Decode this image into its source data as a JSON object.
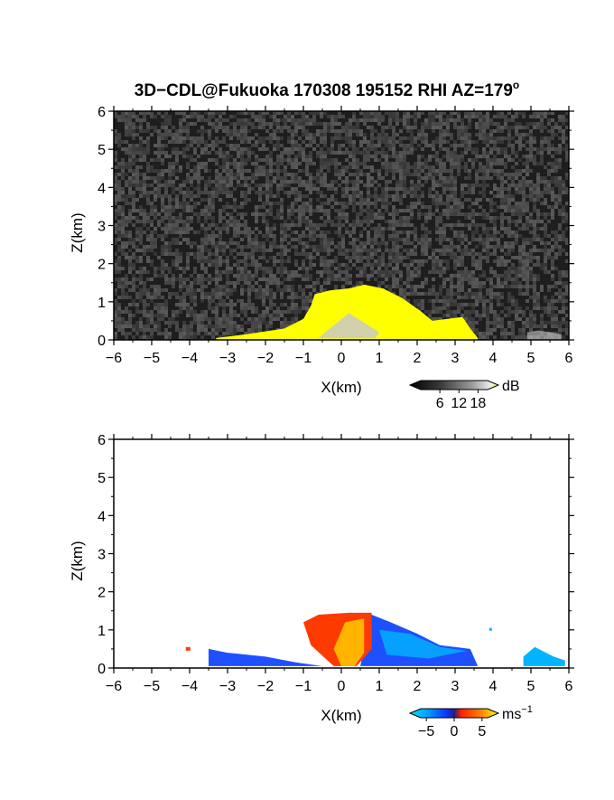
{
  "title": "3D−CDL@Fukuoka 170308 195152 RHI AZ=179",
  "title_sup": "o",
  "colors": {
    "noise_low": "#1e1e1e",
    "noise_high": "#5a5a5a",
    "echo": "#ffff00",
    "echo_core": "#c8c8c8",
    "vel_pos": "#ff3a00",
    "vel_neg": "#1e50ff",
    "vel_mid": "#00b4ff",
    "vel_hot": "#ffb400"
  },
  "chart_data": [
    {
      "type": "heatmap",
      "name": "reflectivity",
      "xlabel": "X(km)",
      "ylabel": "Z(km)",
      "xlim": [
        -6,
        6
      ],
      "ylim": [
        0,
        6
      ],
      "xticks": [
        "−6",
        "−5",
        "−4",
        "−3",
        "−2",
        "−1",
        "0",
        "1",
        "2",
        "3",
        "4",
        "5",
        "6"
      ],
      "yticks": [
        "0",
        "1",
        "2",
        "3",
        "4",
        "5",
        "6"
      ],
      "colorbar": {
        "unit": "dB",
        "ticks": [
          "6",
          "12",
          "18"
        ],
        "range": [
          0,
          21
        ]
      },
      "echo_top": [
        [
          -3.3,
          0.05
        ],
        [
          -2.5,
          0.15
        ],
        [
          -1.5,
          0.3
        ],
        [
          -1.0,
          0.55
        ],
        [
          -0.8,
          0.9
        ],
        [
          -0.7,
          1.2
        ],
        [
          -0.3,
          1.3
        ],
        [
          0.2,
          1.35
        ],
        [
          0.6,
          1.45
        ],
        [
          1.1,
          1.35
        ],
        [
          1.6,
          1.1
        ],
        [
          2.1,
          0.75
        ],
        [
          2.4,
          0.5
        ],
        [
          2.8,
          0.55
        ],
        [
          3.2,
          0.6
        ],
        [
          3.4,
          0.3
        ],
        [
          3.6,
          0.05
        ]
      ],
      "far_echo": [
        [
          4.9,
          0.2
        ],
        [
          5.2,
          0.25
        ],
        [
          5.8,
          0.15
        ]
      ]
    },
    {
      "type": "heatmap",
      "name": "doppler_velocity",
      "xlabel": "X(km)",
      "ylabel": "Z(km)",
      "xlim": [
        -6,
        6
      ],
      "ylim": [
        0,
        6
      ],
      "xticks": [
        "−6",
        "−5",
        "−4",
        "−3",
        "−2",
        "−1",
        "0",
        "1",
        "2",
        "3",
        "4",
        "5",
        "6"
      ],
      "yticks": [
        "0",
        "1",
        "2",
        "3",
        "4",
        "5",
        "6"
      ],
      "colorbar": {
        "unit": "ms",
        "unit_sup": "−1",
        "ticks": [
          "−5",
          "0",
          "5"
        ],
        "range": [
          -6,
          6
        ]
      },
      "positive_region": [
        [
          -1.0,
          1.2
        ],
        [
          -0.6,
          1.4
        ],
        [
          0.2,
          1.45
        ],
        [
          0.8,
          1.45
        ],
        [
          0.8,
          0.5
        ],
        [
          0.4,
          0.05
        ],
        [
          -0.2,
          0.05
        ],
        [
          -0.8,
          0.6
        ]
      ],
      "negative_region": [
        [
          0.8,
          1.4
        ],
        [
          1.3,
          1.2
        ],
        [
          2.0,
          0.9
        ],
        [
          2.6,
          0.6
        ],
        [
          3.4,
          0.5
        ],
        [
          3.6,
          0.05
        ],
        [
          0.5,
          0.05
        ]
      ],
      "low_level_negative": [
        [
          -3.5,
          0.5
        ],
        [
          -3.0,
          0.4
        ],
        [
          -2.0,
          0.3
        ],
        [
          -1.2,
          0.15
        ],
        [
          -0.5,
          0.05
        ],
        [
          -3.5,
          0.05
        ]
      ],
      "far_echo": [
        [
          4.8,
          0.3
        ],
        [
          5.1,
          0.55
        ],
        [
          5.6,
          0.3
        ],
        [
          5.9,
          0.2
        ]
      ]
    }
  ]
}
